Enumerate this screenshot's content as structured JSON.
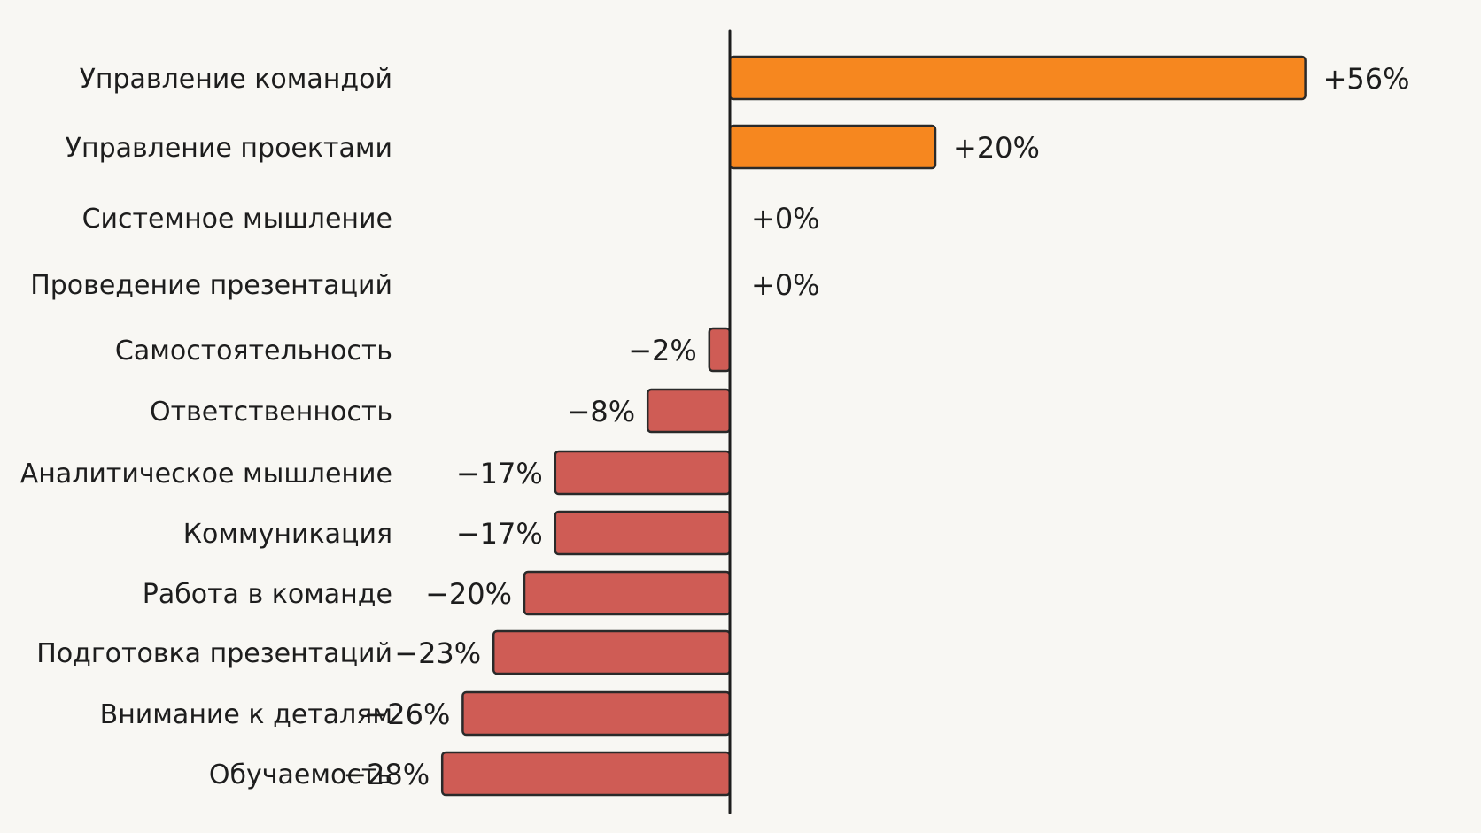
{
  "chart_data": {
    "type": "bar",
    "orientation": "horizontal",
    "title": "",
    "xlabel": "",
    "ylabel": "",
    "grid": false,
    "xlim": [
      -28,
      56
    ],
    "categories": [
      "Управление командой",
      "Управление проектами",
      "Системное мышление",
      "Проведение презентаций",
      "Самостоятельность",
      "Ответственность",
      "Аналитическое мышление",
      "Коммуникация",
      "Работа в команде",
      "Подготовка презентаций",
      "Внимание к деталям",
      "Обучаемость"
    ],
    "values": [
      56,
      20,
      0,
      0,
      -2,
      -8,
      -17,
      -17,
      -20,
      -23,
      -26,
      -28
    ],
    "value_labels": [
      "+56%",
      "+20%",
      "+0%",
      "+0%",
      "−2%",
      "−8%",
      "−17%",
      "−17%",
      "−20%",
      "−23%",
      "−26%",
      "−28%"
    ],
    "colors": {
      "positive": "#f6871f",
      "negative": "#cf5c55",
      "outline": "#2a2a2a",
      "axis": "#1d1d1d",
      "text": "#1d1d1d",
      "background": "#f8f7f3"
    }
  }
}
